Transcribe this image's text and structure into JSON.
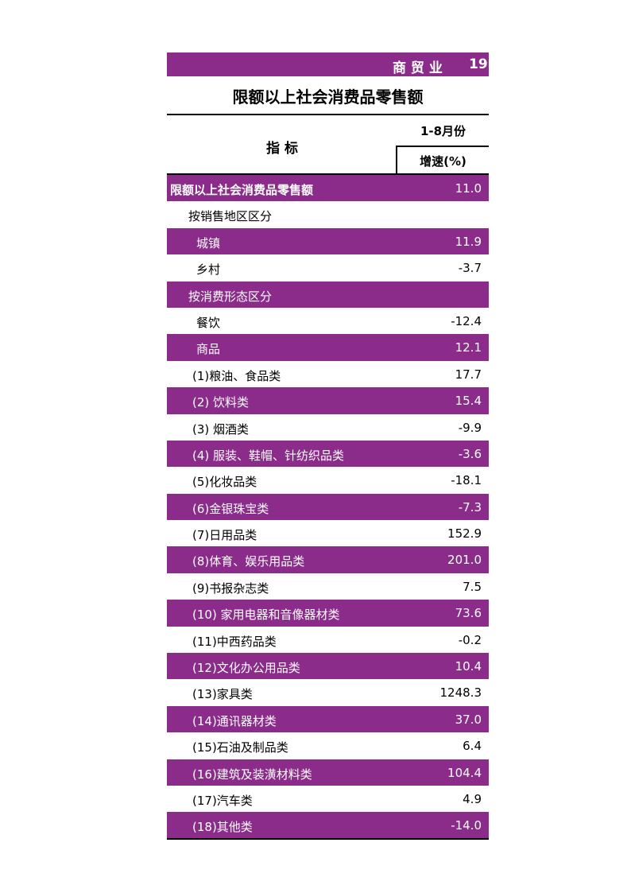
{
  "header": {
    "section": "商 贸 业",
    "page": "19"
  },
  "title": "限额以上社会消费品零售额",
  "columns": {
    "indicator": "指 标",
    "period": "1-8月份",
    "growth": "增速(%)"
  },
  "colors": {
    "accent": "#8b2c8b"
  },
  "rows": [
    {
      "label": "限额以上社会消费品零售额",
      "value": "11.0"
    },
    {
      "label": "按销售地区区分",
      "value": ""
    },
    {
      "label": "城镇",
      "value": "11.9"
    },
    {
      "label": "乡村",
      "value": "-3.7"
    },
    {
      "label": "按消费形态区分",
      "value": ""
    },
    {
      "label": "餐饮",
      "value": "-12.4"
    },
    {
      "label": "商品",
      "value": "12.1"
    },
    {
      "label": "(1)粮油、食品类",
      "value": "17.7"
    },
    {
      "label": "(2) 饮料类",
      "value": "15.4"
    },
    {
      "label": "(3) 烟酒类",
      "value": "-9.9"
    },
    {
      "label": "(4) 服装、鞋帽、针纺织品类",
      "value": "-3.6"
    },
    {
      "label": "(5)化妆品类",
      "value": "-18.1"
    },
    {
      "label": "(6)金银珠宝类",
      "value": "-7.3"
    },
    {
      "label": "(7)日用品类",
      "value": "152.9"
    },
    {
      "label": "(8)体育、娱乐用品类",
      "value": "201.0"
    },
    {
      "label": "(9)书报杂志类",
      "value": "7.5"
    },
    {
      "label": "(10) 家用电器和音像器材类",
      "value": "73.6"
    },
    {
      "label": "(11)中西药品类",
      "value": "-0.2"
    },
    {
      "label": "(12)文化办公用品类",
      "value": "10.4"
    },
    {
      "label": "(13)家具类",
      "value": "1248.3"
    },
    {
      "label": "(14)通讯器材类",
      "value": "37.0"
    },
    {
      "label": "(15)石油及制品类",
      "value": "6.4"
    },
    {
      "label": "(16)建筑及装潢材料类",
      "value": "104.4"
    },
    {
      "label": "(17)汽车类",
      "value": "4.9"
    },
    {
      "label": "(18)其他类",
      "value": "-14.0"
    }
  ]
}
